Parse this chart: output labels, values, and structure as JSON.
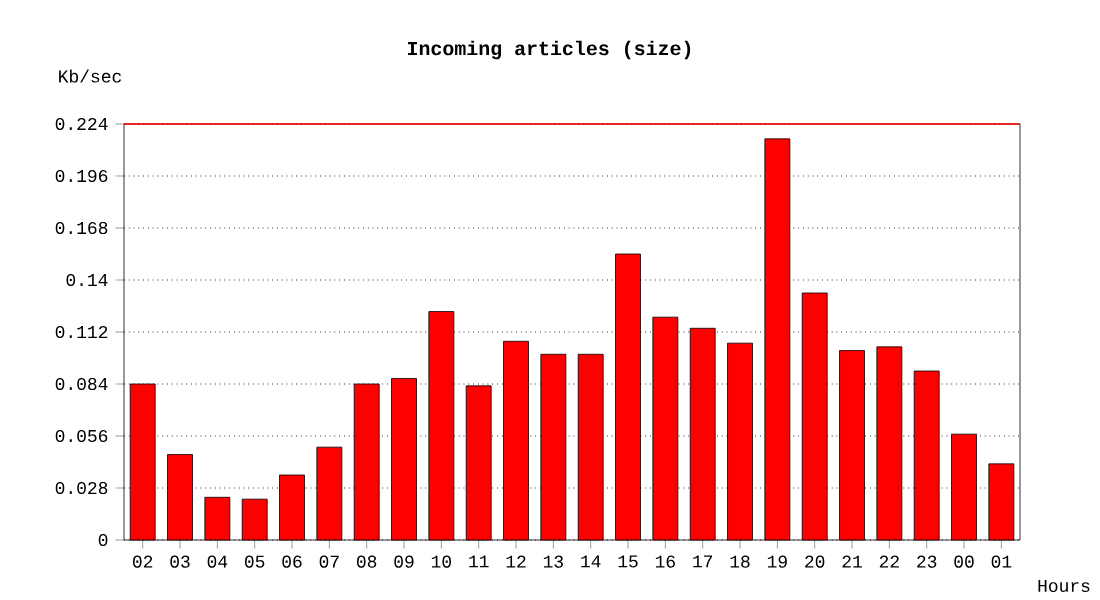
{
  "chart_data": {
    "type": "bar",
    "title": "Incoming articles (size)",
    "xlabel": "Hours",
    "ylabel": "Kb/sec",
    "categories": [
      "02",
      "03",
      "04",
      "05",
      "06",
      "07",
      "08",
      "09",
      "10",
      "11",
      "12",
      "13",
      "14",
      "15",
      "16",
      "17",
      "18",
      "19",
      "20",
      "21",
      "22",
      "23",
      "00",
      "01"
    ],
    "values": [
      0.084,
      0.046,
      0.023,
      0.022,
      0.035,
      0.05,
      0.084,
      0.087,
      0.123,
      0.083,
      0.107,
      0.1,
      0.1,
      0.154,
      0.12,
      0.114,
      0.106,
      0.216,
      0.133,
      0.102,
      0.104,
      0.091,
      0.057,
      0.041
    ],
    "color": "#ff0000",
    "ylim": [
      0,
      0.224
    ],
    "yticks": [
      0,
      0.028,
      0.056,
      0.084,
      0.112,
      0.14,
      0.168,
      0.196,
      0.224
    ],
    "grid": "y",
    "line_style": "dotted",
    "ref_lines": [
      {
        "axis": "y",
        "value": 0.224,
        "color": "#ff0000"
      }
    ]
  }
}
